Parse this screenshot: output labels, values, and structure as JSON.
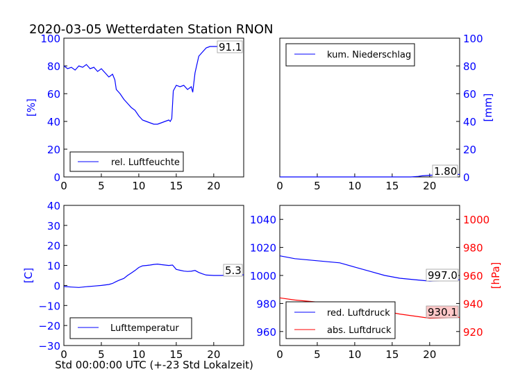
{
  "figure": {
    "title": "2020-03-05 Wetterdaten Station RNON",
    "footer_xlabel": "Std 00:00:00 UTC (+-23 Std Lokalzeit)"
  },
  "chart_data": [
    {
      "id": "humidity",
      "type": "line",
      "ylabel": "[%]",
      "ylabel_color": "#0000ff",
      "xlim": [
        0,
        24
      ],
      "ylim": [
        0,
        100
      ],
      "x_ticks": [
        "0",
        "5",
        "10",
        "15",
        "20"
      ],
      "y_ticks": [
        "0",
        "20",
        "40",
        "60",
        "80",
        "100"
      ],
      "legend": {
        "position": "lower-left",
        "entries": [
          "rel. Luftfeuchte"
        ]
      },
      "annotation": "91.1",
      "series": [
        {
          "name": "rel. Luftfeuchte",
          "color": "#0000ff",
          "x": [
            0,
            0.5,
            1,
            1.5,
            2,
            2.5,
            3,
            3.5,
            4,
            4.5,
            5,
            5.5,
            6,
            6.5,
            6.8,
            7,
            7.5,
            8,
            8.5,
            9,
            9.5,
            10,
            10.5,
            11,
            11.5,
            12,
            12.5,
            13,
            13.5,
            14,
            14.2,
            14.4,
            14.6,
            15,
            15.5,
            16,
            16.5,
            17,
            17.2,
            17.5,
            18,
            18.5,
            19,
            19.5,
            20,
            20.5,
            21,
            21.5,
            22
          ],
          "y": [
            80,
            78,
            79,
            77,
            80,
            79,
            81,
            78,
            79,
            76,
            78,
            75,
            72,
            74,
            70,
            63,
            60,
            56,
            53,
            50,
            48,
            44,
            41,
            40,
            39,
            38,
            38,
            39,
            40,
            41,
            40,
            42,
            62,
            66,
            65,
            66,
            63,
            65,
            61,
            75,
            87,
            90,
            93,
            94,
            94,
            94,
            93,
            92,
            91
          ]
        }
      ]
    },
    {
      "id": "precipitation",
      "type": "line",
      "ylabel": "[mm]",
      "ylabel_color": "#0000ff",
      "xlim": [
        0,
        24
      ],
      "ylim": [
        0,
        100
      ],
      "x_ticks": [
        "0",
        "5",
        "10",
        "15",
        "20"
      ],
      "y_ticks": [
        "0",
        "20",
        "40",
        "60",
        "80",
        "100"
      ],
      "y_axis_side": "right",
      "legend": {
        "position": "top-left",
        "entries": [
          "kum. Niederschlag"
        ]
      },
      "annotation": "1.80",
      "series": [
        {
          "name": "kum. Niederschlag",
          "color": "#0000ff",
          "x": [
            0,
            5,
            10,
            15,
            17.5,
            18.5,
            19,
            20,
            21,
            22,
            23,
            24
          ],
          "y": [
            0,
            0,
            0,
            0,
            0,
            0.4,
            0.8,
            1.2,
            1.5,
            1.7,
            1.8,
            1.8
          ]
        }
      ]
    },
    {
      "id": "temperature",
      "type": "line",
      "ylabel": "[C]",
      "ylabel_color": "#0000ff",
      "xlim": [
        0,
        24
      ],
      "ylim": [
        -30,
        40
      ],
      "x_ticks": [
        "0",
        "5",
        "10",
        "15",
        "20"
      ],
      "y_ticks": [
        "−30",
        "−20",
        "−10",
        "0",
        "10",
        "20",
        "30",
        "40"
      ],
      "legend": {
        "position": "lower-left",
        "entries": [
          "Lufttemperatur"
        ]
      },
      "annotation": "5.3",
      "series": [
        {
          "name": "Lufttemperatur",
          "color": "#0000ff",
          "x": [
            0,
            1,
            2,
            3,
            4,
            5,
            6,
            6.5,
            7,
            7.5,
            8,
            8.5,
            9,
            9.5,
            10,
            10.5,
            11,
            11.5,
            12,
            12.5,
            13,
            13.5,
            14,
            14.5,
            15,
            15.5,
            16,
            16.5,
            17,
            17.5,
            18,
            18.5,
            19,
            20,
            21,
            22,
            23,
            24
          ],
          "y": [
            -0.5,
            -0.8,
            -1,
            -0.6,
            -0.3,
            0,
            0.5,
            1,
            2,
            2.8,
            3.5,
            5,
            6.2,
            7.5,
            9,
            9.8,
            10,
            10.2,
            10.5,
            10.7,
            10.4,
            10.2,
            10,
            10.2,
            8,
            7.6,
            7.2,
            7,
            7.1,
            7.5,
            6.5,
            5.8,
            5.2,
            5,
            5,
            5.1,
            5.2,
            5.3
          ]
        }
      ]
    },
    {
      "id": "pressure",
      "type": "line",
      "xlim": [
        0,
        24
      ],
      "ylim": [
        950,
        1050
      ],
      "x_ticks": [
        "0",
        "5",
        "10",
        "15",
        "20"
      ],
      "y_ticks": [
        "960",
        "980",
        "1000",
        "1020",
        "1040"
      ],
      "y2label": "[hPa]",
      "y2label_color": "#ff0000",
      "y2lim": [
        910,
        1010
      ],
      "y2_ticks": [
        "920",
        "940",
        "960",
        "980",
        "1000"
      ],
      "legend": {
        "position": "lower-left",
        "entries": [
          "red. Luftdruck",
          "abs. Luftdruck"
        ]
      },
      "annotations": [
        "997.0",
        "930.1"
      ],
      "series": [
        {
          "name": "red. Luftdruck",
          "color": "#0000ff",
          "axis": "left",
          "x": [
            0,
            2,
            4,
            6,
            8,
            10,
            12,
            14,
            16,
            18,
            20,
            22,
            24
          ],
          "y": [
            1014,
            1012,
            1011,
            1010,
            1009,
            1006,
            1003,
            1000,
            998,
            997,
            996,
            996.5,
            997
          ]
        },
        {
          "name": "abs. Luftdruck",
          "color": "#ff0000",
          "axis": "right",
          "x": [
            0,
            2,
            4,
            6,
            8,
            10,
            12,
            14,
            16,
            18,
            20,
            22,
            24
          ],
          "y": [
            944,
            942.5,
            941.5,
            940.5,
            940,
            938.5,
            937,
            934.5,
            932.5,
            931,
            929.5,
            929.8,
            930.1
          ]
        }
      ]
    }
  ]
}
